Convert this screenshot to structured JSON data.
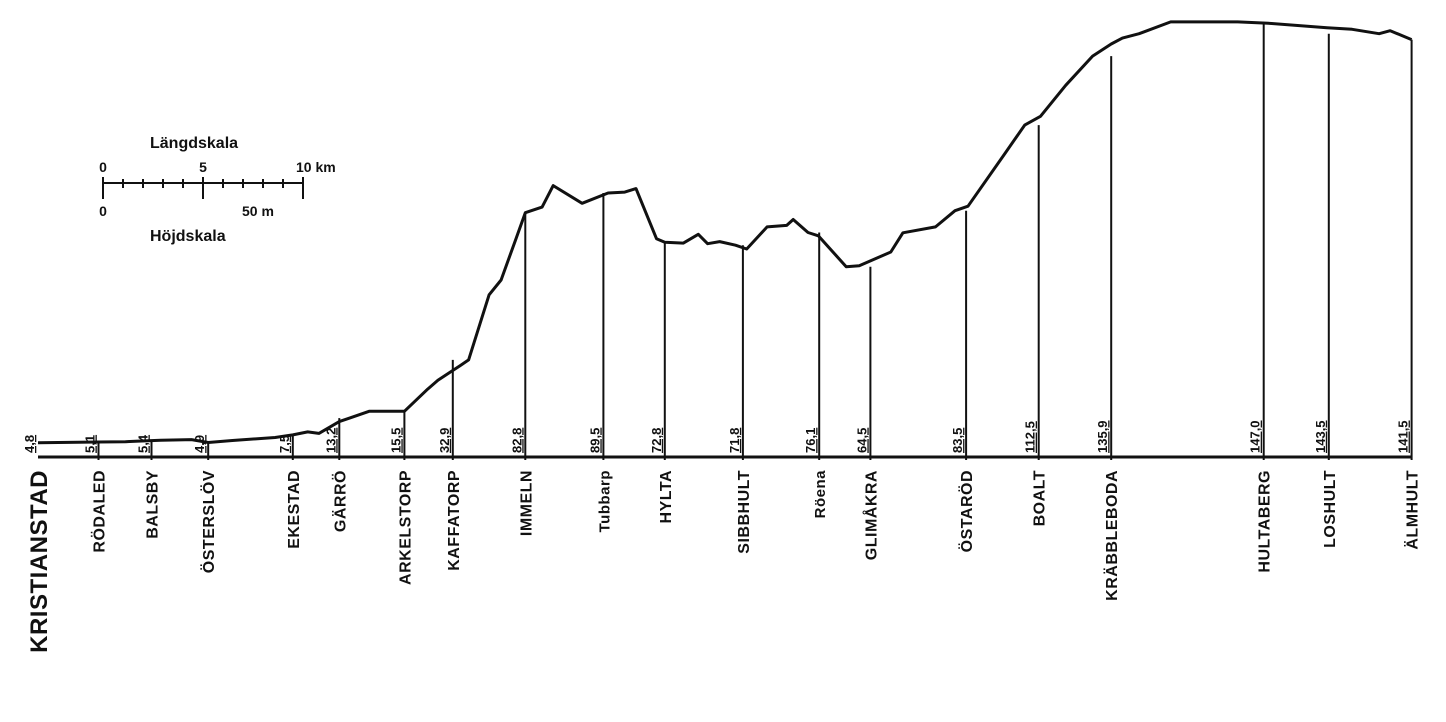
{
  "chart_data": {
    "type": "line",
    "xlabel": "",
    "ylabel": "",
    "x_range_km": [
      0,
      137.7
    ],
    "y_range_m": [
      0,
      160
    ],
    "grid": false,
    "legend": "none",
    "profile": [
      [
        0,
        4.8
      ],
      [
        6.5,
        5.1
      ],
      [
        9.4,
        5.2
      ],
      [
        10.8,
        5.4
      ],
      [
        13.2,
        5.7
      ],
      [
        16.5,
        5.9
      ],
      [
        18.3,
        4.9
      ],
      [
        20.9,
        5.6
      ],
      [
        25.5,
        6.6
      ],
      [
        27.4,
        7.5
      ],
      [
        29.0,
        8.5
      ],
      [
        30.2,
        8.0
      ],
      [
        32.4,
        12.0
      ],
      [
        33.5,
        13.2
      ],
      [
        35.6,
        15.5
      ],
      [
        37.4,
        15.5
      ],
      [
        39.4,
        15.5
      ],
      [
        41.9,
        23.0
      ],
      [
        43.0,
        26.0
      ],
      [
        44.2,
        28.5
      ],
      [
        45.4,
        31.0
      ],
      [
        46.3,
        32.9
      ],
      [
        48.5,
        55.0
      ],
      [
        49.8,
        60.0
      ],
      [
        51.4,
        74.0
      ],
      [
        52.4,
        82.8
      ],
      [
        54.2,
        84.7
      ],
      [
        55.4,
        92.0
      ],
      [
        58.5,
        86.0
      ],
      [
        61.3,
        89.5
      ],
      [
        63.1,
        89.8
      ],
      [
        64.3,
        91.0
      ],
      [
        66.5,
        74.0
      ],
      [
        67.4,
        72.8
      ],
      [
        69.4,
        72.5
      ],
      [
        71.0,
        75.5
      ],
      [
        72.0,
        72.3
      ],
      [
        73.3,
        73.0
      ],
      [
        75.0,
        71.8
      ],
      [
        76.2,
        70.5
      ],
      [
        78.4,
        78.0
      ],
      [
        80.5,
        78.5
      ],
      [
        81.2,
        80.5
      ],
      [
        82.8,
        76.1
      ],
      [
        83.9,
        75.0
      ],
      [
        86.9,
        64.5
      ],
      [
        88.3,
        64.8
      ],
      [
        91.7,
        69.5
      ],
      [
        93.0,
        76.0
      ],
      [
        96.5,
        78.0
      ],
      [
        98.6,
        83.5
      ],
      [
        100.0,
        85.0
      ],
      [
        104.0,
        103.0
      ],
      [
        106.1,
        112.5
      ],
      [
        107.8,
        115.5
      ],
      [
        110.5,
        126.0
      ],
      [
        113.4,
        135.9
      ],
      [
        115.4,
        140.0
      ],
      [
        116.6,
        142.0
      ],
      [
        118.4,
        143.5
      ],
      [
        121.8,
        147.5
      ],
      [
        129.0,
        147.5
      ],
      [
        132.3,
        147.0
      ],
      [
        138.6,
        145.5
      ],
      [
        141.3,
        145.0
      ],
      [
        144.2,
        143.5
      ],
      [
        145.4,
        144.5
      ],
      [
        147.7,
        141.5
      ]
    ],
    "stations": [
      {
        "name": "KRISTIANSTAD",
        "km": 0,
        "elev": "4,8"
      },
      {
        "name": "RÖDALED",
        "km": 6.5,
        "elev": "5,1"
      },
      {
        "name": "BALSBY",
        "km": 12.2,
        "elev": "5,4"
      },
      {
        "name": "ÖSTERSLÖV",
        "km": 18.3,
        "elev": "4,9"
      },
      {
        "name": "EKESTAD",
        "km": 27.4,
        "elev": "7,5"
      },
      {
        "name": "GÄRRÖ",
        "km": 32.4,
        "elev": "13,2"
      },
      {
        "name": "ARKELSTORP",
        "km": 39.4,
        "elev": "15,5"
      },
      {
        "name": "KAFFATORP",
        "km": 44.6,
        "elev": "32,9"
      },
      {
        "name": "IMMELN",
        "km": 52.4,
        "elev": "82,8"
      },
      {
        "name": "Tubbarp",
        "km": 60.8,
        "elev": "89,5"
      },
      {
        "name": "HYLTA",
        "km": 67.4,
        "elev": "72,8"
      },
      {
        "name": "SIBBHULT",
        "km": 75.8,
        "elev": "71,8"
      },
      {
        "name": "Röena",
        "km": 84.0,
        "elev": "76,1"
      },
      {
        "name": "GLIMÅKRA",
        "km": 89.5,
        "elev": "64,5"
      },
      {
        "name": "ÖSTARÖD",
        "km": 99.8,
        "elev": "83,5"
      },
      {
        "name": "BOALT",
        "km": 107.6,
        "elev": "112,5"
      },
      {
        "name": "KRÄBBLEBODA",
        "km": 115.4,
        "elev": "135,9"
      },
      {
        "name": "HULTABERG",
        "km": 131.8,
        "elev": "147,0"
      },
      {
        "name": "LOSHULT",
        "km": 138.8,
        "elev": "143,5"
      },
      {
        "name": "ÄLMHULT",
        "km": 147.7,
        "elev": "141,5"
      }
    ]
  },
  "scale_legend": {
    "length_title": "Längdskala",
    "length_ticks": [
      "0",
      "5",
      "10 km"
    ],
    "height_ticks": [
      "0",
      "50 m"
    ],
    "height_title": "Höjdskala"
  }
}
